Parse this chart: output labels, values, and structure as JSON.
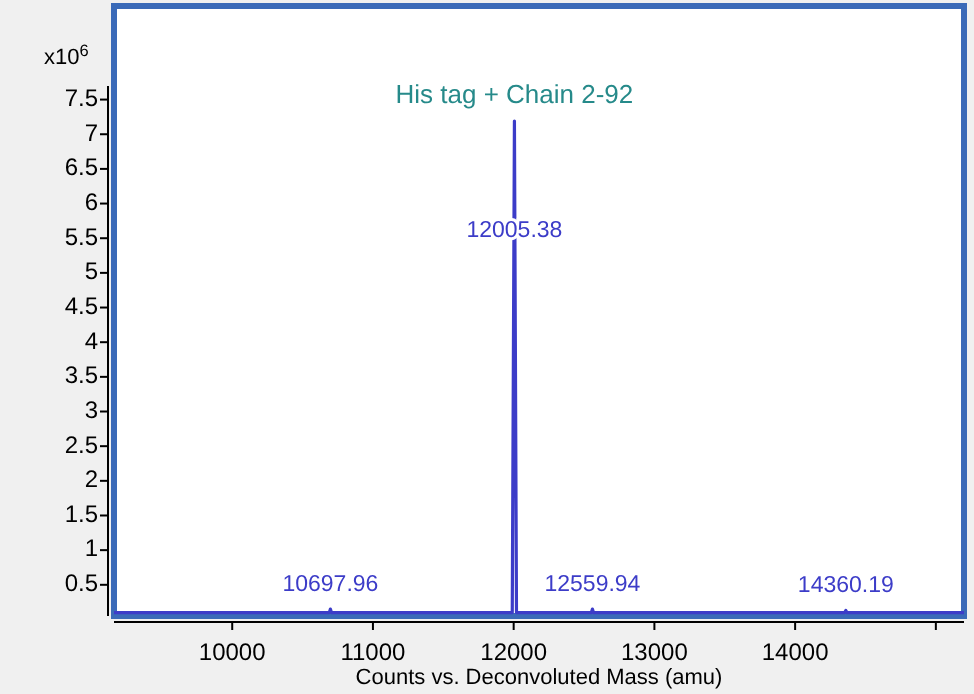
{
  "chart_data": {
    "type": "line",
    "xlabel": "Counts vs. Deconvoluted Mass (amu)",
    "ylabel": "x10$^{6}$",
    "xlim": [
      9160,
      15200
    ],
    "ylim": [
      0.05,
      8.85
    ],
    "xticks": [
      10000,
      11000,
      12000,
      13000,
      14000,
      {
        "value": 15000,
        "label": null
      }
    ],
    "yticks": [
      0.5,
      1,
      1.5,
      2,
      2.5,
      3,
      3.5,
      4,
      4.5,
      5,
      5.5,
      6,
      6.5,
      7,
      7.5
    ],
    "grid": false,
    "marker": "none",
    "line_style": "solid",
    "series": [
      {
        "color": "#3c3cc8",
        "x": [
          9160,
          10690,
          10697.96,
          10705,
          11990,
          12005.38,
          12020,
          12552,
          12559.94,
          12567,
          14352,
          14360.19,
          14368,
          15200
        ],
        "values": [
          0.1,
          0.1,
          0.15,
          0.1,
          0.1,
          7.19,
          0.1,
          0.1,
          0.15,
          0.1,
          0.1,
          0.13,
          0.1,
          0.1
        ]
      }
    ],
    "annotations": [
      {
        "text": "His tag + Chain 2-92",
        "x": 12005.38,
        "y": 7.19
      },
      {
        "text": "12005.38",
        "x": 12005.38,
        "y": 5.6
      },
      {
        "text": "10697.96",
        "x": 10697.96,
        "y": 0.15
      },
      {
        "text": "12559.94",
        "x": 12559.94,
        "y": 0.15
      },
      {
        "text": "14360.19",
        "x": 14360.19,
        "y": 0.13
      }
    ]
  }
}
